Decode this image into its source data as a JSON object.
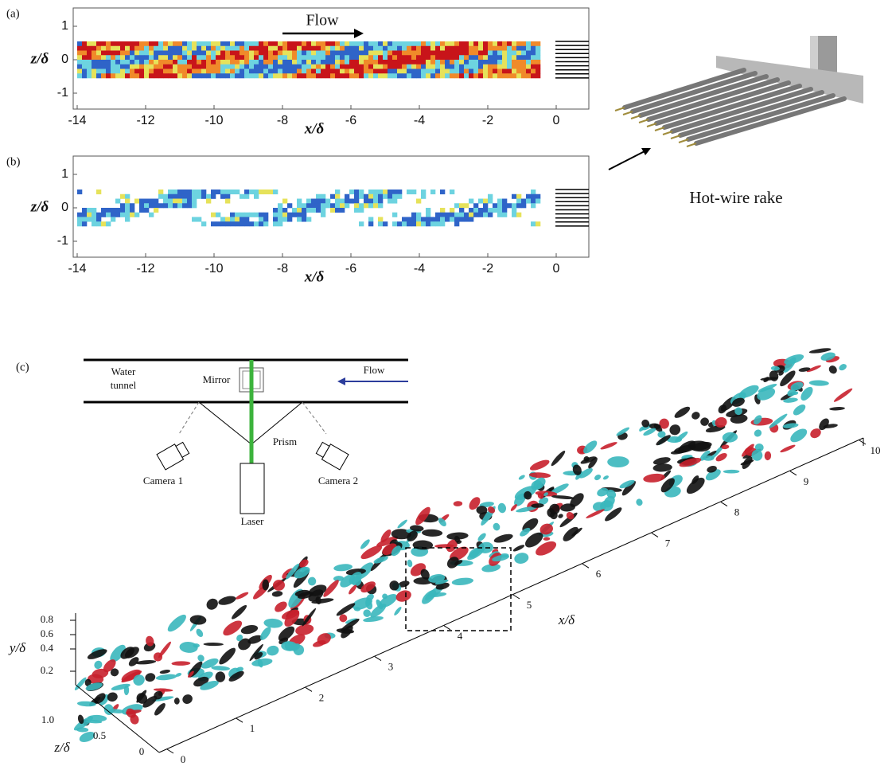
{
  "panels": [
    {
      "label": "(a)",
      "x_label": "x/δ",
      "y_label": "z/δ",
      "annotation": "Flow",
      "x_ticks": [
        "-14",
        "-12",
        "-10",
        "-8",
        "-6",
        "-4",
        "-2",
        "0"
      ],
      "y_ticks": [
        "1",
        "0",
        "-1"
      ]
    },
    {
      "label": "(b)",
      "x_label": "x/δ",
      "y_label": "z/δ",
      "x_ticks": [
        "-14",
        "-12",
        "-10",
        "-8",
        "-6",
        "-4",
        "-2",
        "0"
      ],
      "y_ticks": [
        "1",
        "0",
        "-1"
      ]
    }
  ],
  "rake": {
    "caption": "Hot-wire rake"
  },
  "panel_c": {
    "label": "(c)",
    "schematic": {
      "water_tunnel": [
        "Water",
        "tunnel"
      ],
      "mirror": "Mirror",
      "flow": "Flow",
      "prism": "Prism",
      "camera_1": "Camera 1",
      "camera_2": "Camera 2",
      "laser": "Laser"
    },
    "x_label": "x/δ",
    "y_label": "y/δ",
    "z_label": "z/δ",
    "x_ticks": [
      "0",
      "1",
      "2",
      "3",
      "4",
      "5",
      "6",
      "7",
      "8",
      "9",
      "10"
    ],
    "y_ticks": [
      "0.8",
      "0.6",
      "0.4",
      "0.2"
    ],
    "z_ticks": [
      "1.0",
      "0.5",
      "0"
    ]
  }
}
